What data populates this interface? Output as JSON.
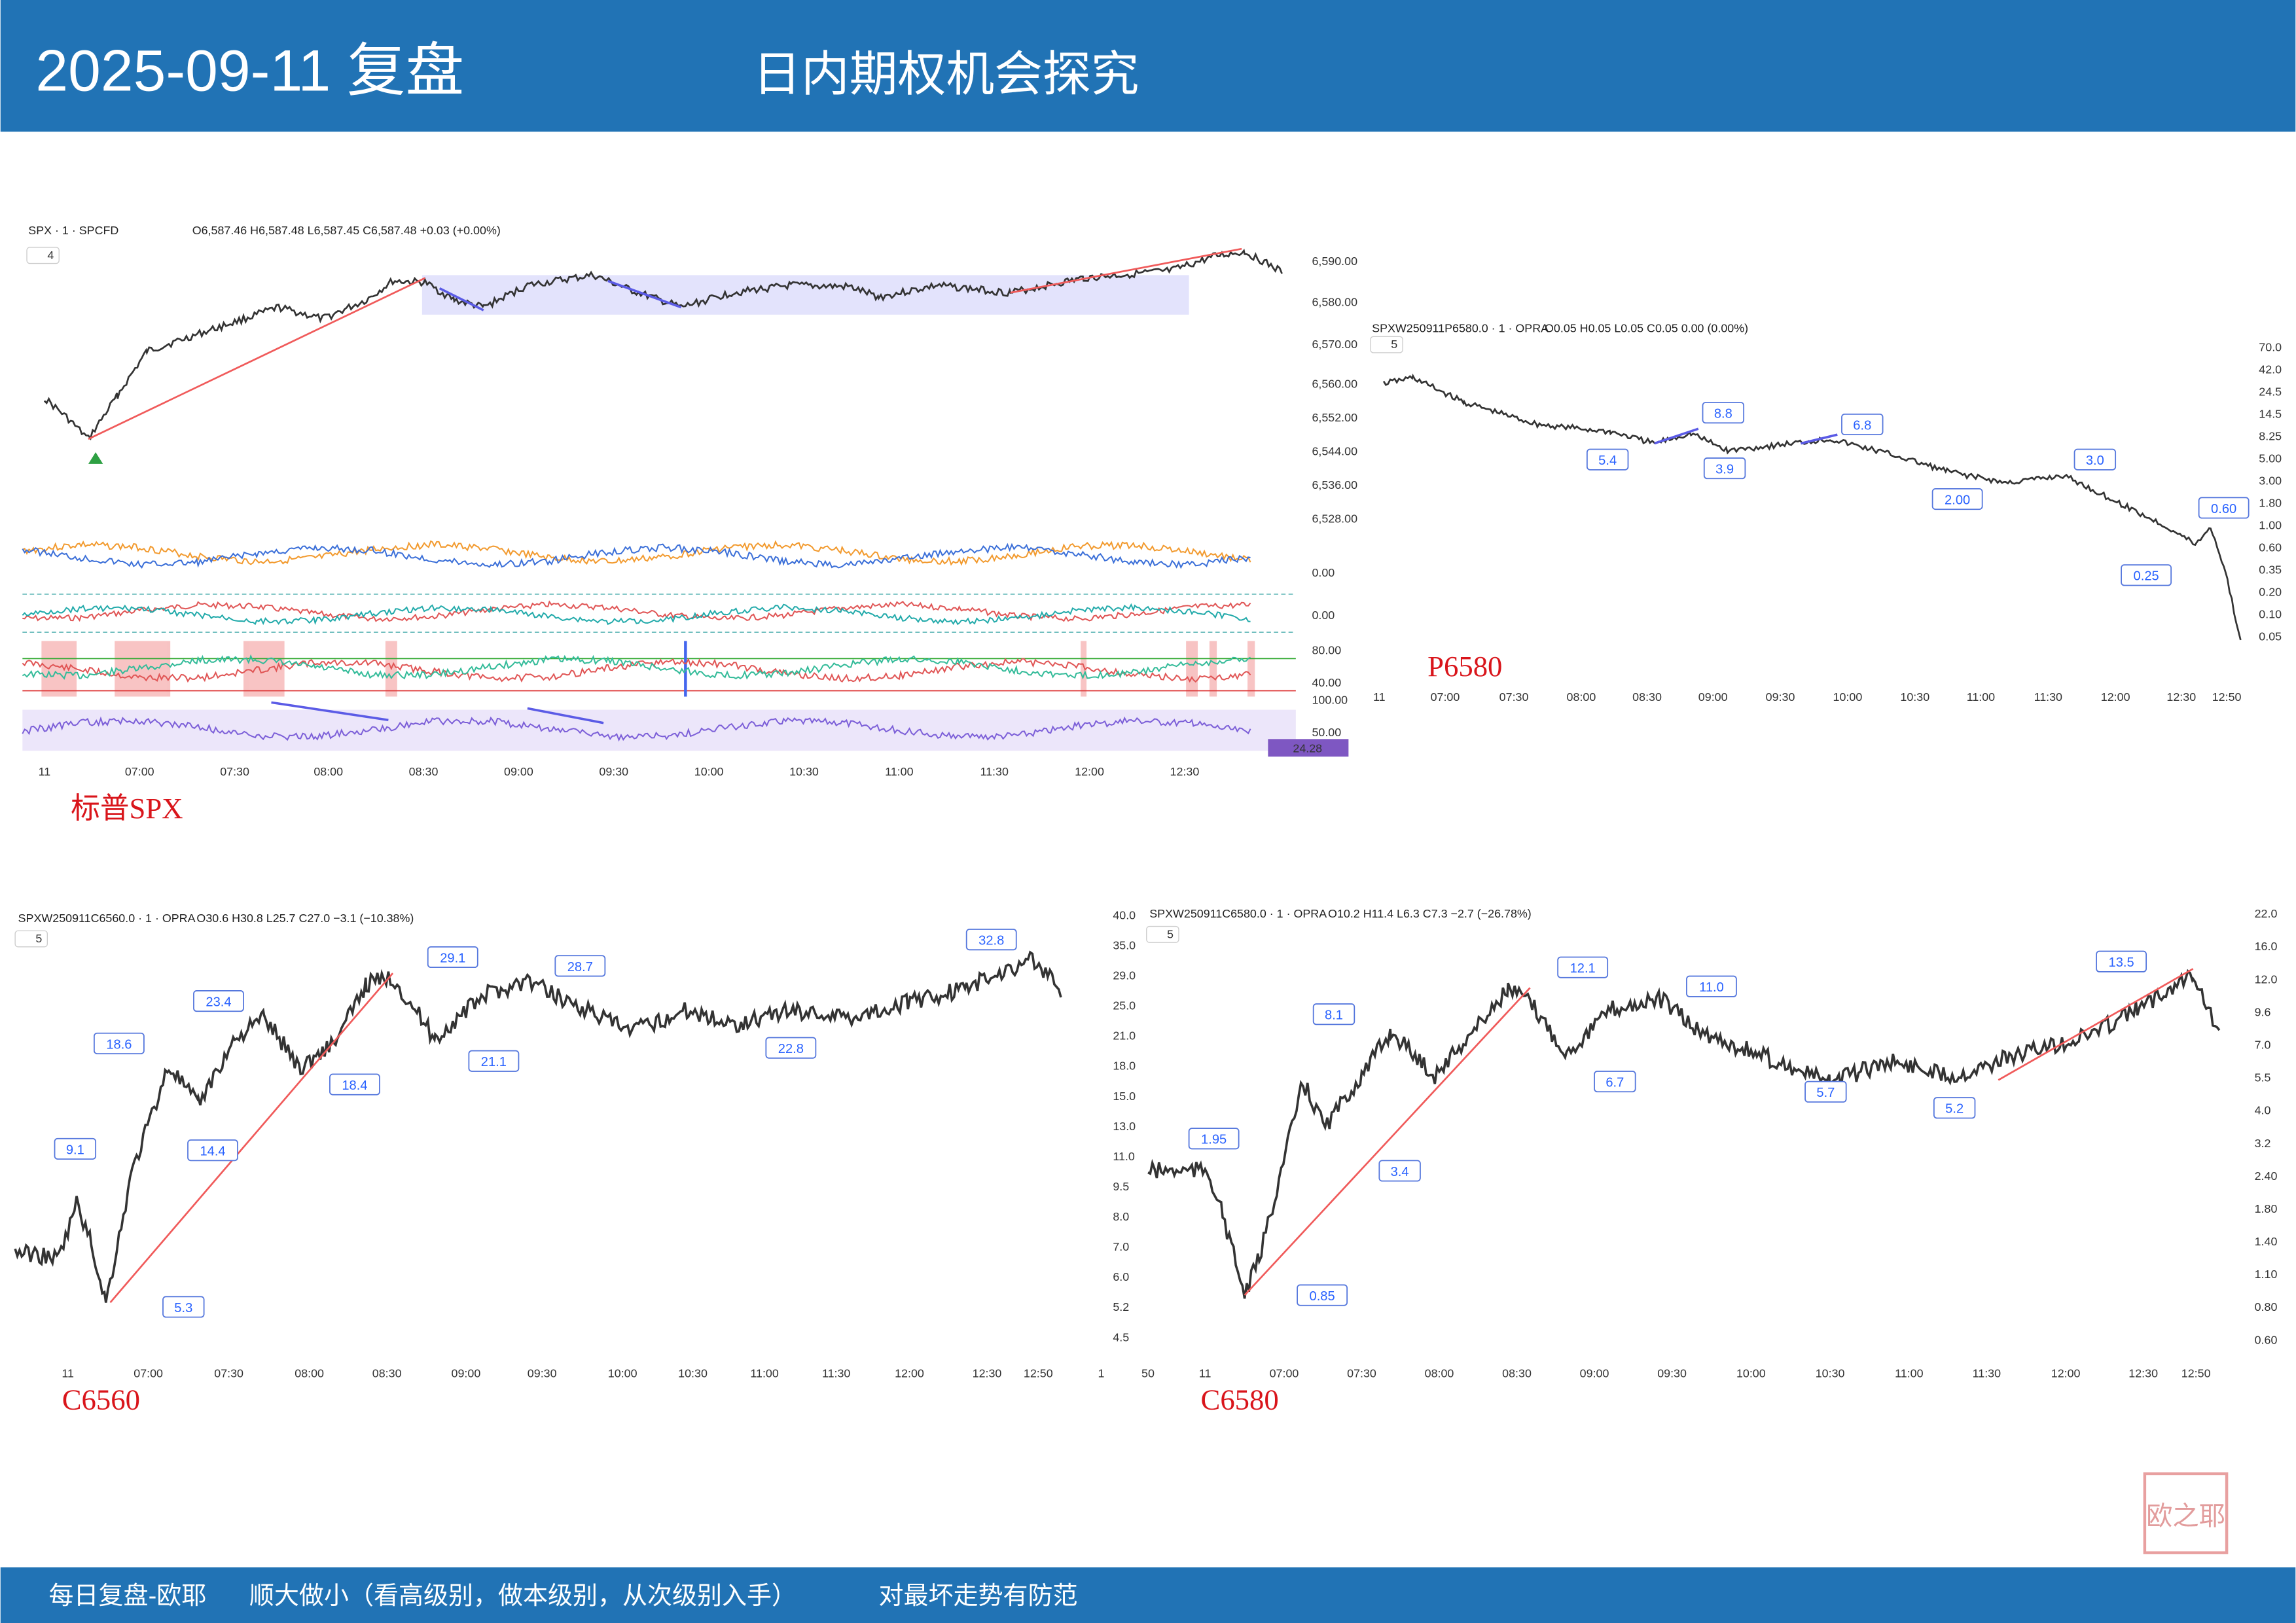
{
  "header": {
    "date": "2025-09-11 复盘",
    "subtitle": "日内期权机会探究"
  },
  "panels": [
    {
      "symbol": "SPX · 1 · SPCFD",
      "ohlc": "O6,587.46 H6,587.48 L6,587.45 C6,587.48 +0.03 (+0.00%)",
      "interval": "4",
      "caption": "标普SPX",
      "yticks": [
        "6,590.00",
        "6,580.00",
        "6,570.00",
        "6,560.00",
        "6,552.00",
        "6,544.00",
        "6,536.00",
        "6,528.00"
      ],
      "indicator_ticks": [
        "0.00",
        "0.00",
        "80.00",
        "40.00",
        "100.00",
        "50.00"
      ],
      "rsi_value": "24.28",
      "xticks": [
        "11",
        "07:00",
        "07:30",
        "08:00",
        "08:30",
        "09:00",
        "09:30",
        "10:00",
        "10:30",
        "11:00",
        "11:30",
        "12:00",
        "12:30"
      ],
      "callouts": []
    },
    {
      "symbol": "SPXW250911P6580.0 · 1 · OPRA",
      "ohlc": "O0.05 H0.05 L0.05 C0.05 0.00 (0.00%)",
      "interval": "5",
      "caption": "P6580",
      "yticks": [
        "70.0",
        "42.0",
        "24.5",
        "14.5",
        "8.25",
        "5.00",
        "3.00",
        "1.80",
        "1.00",
        "0.60",
        "0.35",
        "0.20",
        "0.10",
        "0.05"
      ],
      "xticks": [
        "11",
        "07:00",
        "07:30",
        "08:00",
        "08:30",
        "09:00",
        "09:30",
        "10:00",
        "10:30",
        "11:00",
        "11:30",
        "12:00",
        "12:30",
        "12:50"
      ],
      "callouts": [
        "5.4",
        "8.8",
        "3.9",
        "6.8",
        "3.0",
        "2.00",
        "0.60",
        "0.25"
      ]
    },
    {
      "symbol": "SPXW250911C6560.0 · 1 · OPRA",
      "ohlc": "O30.6 H30.8 L25.7 C27.0 −3.1 (−10.38%)",
      "interval": "5",
      "caption": "C6560",
      "yticks": [
        "40.0",
        "35.0",
        "29.0",
        "25.0",
        "21.0",
        "18.0",
        "15.0",
        "13.0",
        "11.0",
        "9.5",
        "8.0",
        "7.0",
        "6.0",
        "5.2",
        "4.5"
      ],
      "xticks": [
        "11",
        "07:00",
        "07:30",
        "08:00",
        "08:30",
        "09:00",
        "09:30",
        "10:00",
        "10:30",
        "11:00",
        "11:30",
        "12:00",
        "12:30",
        "12:50",
        "1"
      ],
      "callouts": [
        "9.1",
        "18.6",
        "23.4",
        "14.4",
        "18.4",
        "29.1",
        "21.1",
        "28.7",
        "22.8",
        "32.8",
        "5.3"
      ]
    },
    {
      "symbol": "SPXW250911C6580.0 · 1 · OPRA",
      "ohlc": "O10.2 H11.4 L6.3 C7.3 −2.7 (−26.78%)",
      "interval": "5",
      "caption": "C6580",
      "yticks": [
        "22.0",
        "16.0",
        "12.0",
        "9.6",
        "7.0",
        "5.5",
        "4.0",
        "3.2",
        "2.40",
        "1.80",
        "1.40",
        "1.10",
        "0.80",
        "0.60"
      ],
      "xticks": [
        "50",
        "11",
        "07:00",
        "07:30",
        "08:00",
        "08:30",
        "09:00",
        "09:30",
        "10:00",
        "10:30",
        "11:00",
        "11:30",
        "12:00",
        "12:30",
        "12:50"
      ],
      "callouts": [
        "1.95",
        "8.1",
        "12.1",
        "11.0",
        "3.4",
        "6.7",
        "5.7",
        "13.5",
        "5.2",
        "0.85"
      ]
    }
  ],
  "seal": "欧之耶",
  "footer": {
    "left": "每日复盘-欧耶",
    "middle": "顺大做小（看高级别，做本级别，从次级别入手）",
    "right": "对最坏走势有防范"
  }
}
